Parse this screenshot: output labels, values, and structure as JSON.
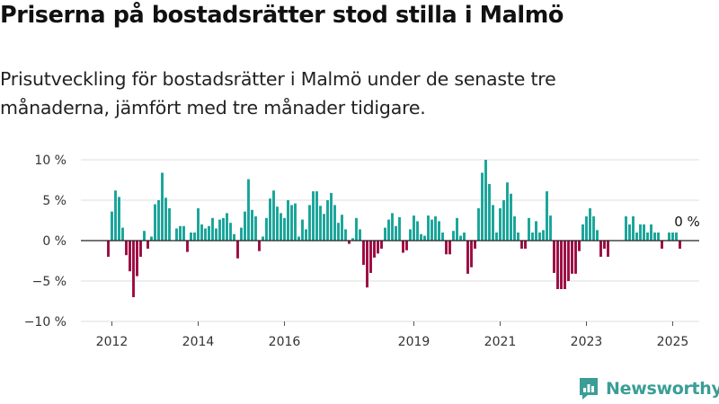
{
  "header": {
    "title": "Priserna på bostadsrätter stod stilla i Malmö",
    "subtitle": "Prisutveckling för bostadsrätter i Malmö under de senaste tre månaderna, jämfört med tre månader tidigare."
  },
  "brand": {
    "name": "Newsworthy",
    "icon": "newsworthy-logo-icon",
    "color": "#3a9e97"
  },
  "colors": {
    "positive": "#17a398",
    "negative": "#9c0a40",
    "grid": "#dddddd",
    "zero_line": "#222222"
  },
  "chart_data": {
    "type": "bar",
    "x_unit": "month",
    "start_month": "2011-12",
    "ylim": [
      -10,
      10
    ],
    "y_ticks": [
      {
        "value": 10,
        "label": "10 %"
      },
      {
        "value": 5,
        "label": "5 %"
      },
      {
        "value": 0,
        "label": "0 %"
      },
      {
        "value": -5,
        "label": "−5 %"
      },
      {
        "value": -10,
        "label": "−10 %"
      }
    ],
    "x_ticks": [
      {
        "month": "2012-01",
        "label": "2012"
      },
      {
        "month": "2014-01",
        "label": "2014"
      },
      {
        "month": "2016-01",
        "label": "2016"
      },
      {
        "month": "2019-01",
        "label": "2019"
      },
      {
        "month": "2021-01",
        "label": "2021"
      },
      {
        "month": "2023-01",
        "label": "2023"
      },
      {
        "month": "2025-01",
        "label": "2025"
      }
    ],
    "grid": true,
    "legend": "none",
    "annotation": {
      "text": "0 %",
      "at": "last"
    },
    "values": [
      -2,
      3.6,
      6.2,
      5.4,
      1.6,
      -1.8,
      -3.8,
      -7,
      -4.4,
      -2,
      1.2,
      -1,
      0.5,
      4.5,
      5,
      8.4,
      5.3,
      4,
      0,
      1.5,
      1.8,
      1.8,
      -1.4,
      1,
      1,
      4,
      2,
      1.5,
      1.8,
      2.8,
      1.5,
      2.6,
      2.8,
      3.4,
      2.2,
      0.8,
      -2.2,
      1.6,
      3.6,
      7.6,
      3.8,
      3,
      -1.3,
      0.5,
      2.8,
      5.2,
      6.2,
      4.2,
      3.4,
      2.8,
      5,
      4.4,
      4.6,
      0.5,
      2.6,
      1.4,
      4.4,
      6.1,
      6.1,
      4.3,
      3.3,
      5,
      5.9,
      4.4,
      2.2,
      3.2,
      1.4,
      -0.4,
      0.3,
      2.8,
      1.4,
      -3,
      -5.8,
      -4,
      -2.1,
      -1.6,
      -1,
      1.6,
      2.6,
      3.4,
      1.8,
      2.9,
      -1.5,
      -1.2,
      1.4,
      3.1,
      2.4,
      0.8,
      0.6,
      3.1,
      2.6,
      3,
      2.4,
      1,
      -1.7,
      -1.7,
      1.2,
      2.8,
      0.6,
      1,
      -4.1,
      -3.3,
      -1,
      4,
      8.4,
      10,
      7,
      4.4,
      1,
      4,
      5,
      7.2,
      5.8,
      3,
      1,
      -1,
      -1,
      2.8,
      1,
      2.4,
      1,
      1.3,
      6.1,
      3.1,
      -4,
      -6,
      -6,
      -6,
      -5,
      -4.1,
      -4.1,
      -1.3,
      2,
      3,
      4,
      3,
      1.3,
      -2,
      -1,
      -2,
      0,
      0,
      0,
      0,
      3,
      2,
      3,
      1,
      2,
      2,
      1,
      2,
      1,
      1,
      -1,
      0,
      1,
      1,
      1,
      -1,
      0,
      0
    ]
  }
}
